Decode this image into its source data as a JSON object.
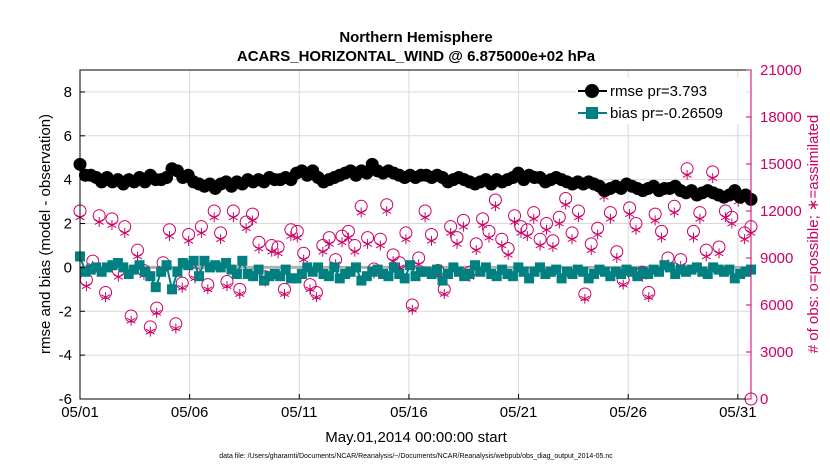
{
  "chart_data": {
    "type": "line",
    "title": "Northern Hemisphere",
    "subtitle": "ACARS_HORIZONTAL_WIND @ 6.875000e+02 hPa",
    "xlabel": "May.01,2014 00:00:00 start",
    "ylabel_left": "rmse and bias (model - observation)",
    "ylabel_right": "# of obs: o=possible; ∗=assimilated",
    "footnote": "data file: /Users/gharamti/Documents/NCAR/Reanalysis/~/Documents/NCAR/Reanalysis/webpub/obs_diag_output_2014-05.nc",
    "x_tick_labels": [
      "05/01",
      "05/06",
      "05/11",
      "05/16",
      "05/21",
      "05/26",
      "05/31"
    ],
    "x_tick_days": [
      1,
      6,
      11,
      16,
      21,
      26,
      31
    ],
    "xlim_days": [
      1,
      31.6
    ],
    "ylim_left": [
      -6,
      9
    ],
    "y_ticks_left": [
      "-6",
      "-4",
      "-2",
      "0",
      "2",
      "4",
      "6",
      "8"
    ],
    "ylim_right": [
      0,
      21000
    ],
    "y_ticks_right": [
      "0",
      "3000",
      "6000",
      "9000",
      "12000",
      "15000",
      "18000",
      "21000"
    ],
    "grid": true,
    "legend_position": "top-right",
    "colors": {
      "rmse": "#000000",
      "bias": "#008080",
      "obs": "#cc0066",
      "zero_line": "#b0b0b0"
    },
    "series": [
      {
        "name": "rmse pr=3.793",
        "values": [
          4.7,
          4.2,
          4.2,
          4.1,
          3.9,
          4.1,
          3.9,
          4.0,
          3.8,
          4.0,
          3.9,
          4.1,
          3.9,
          4.2,
          4.0,
          4.0,
          4.1,
          4.5,
          4.4,
          4.1,
          4.2,
          3.9,
          3.8,
          3.7,
          3.8,
          3.6,
          3.8,
          3.9,
          3.7,
          3.9,
          3.8,
          4.0,
          3.9,
          4.0,
          3.9,
          4.1,
          4.0,
          4.0,
          4.1,
          4.0,
          4.3,
          4.4,
          4.2,
          4.4,
          4.1,
          3.9,
          4.0,
          4.1,
          4.2,
          4.3,
          4.4,
          4.2,
          4.4,
          4.3,
          4.7,
          4.4,
          4.3,
          4.4,
          4.3,
          4.2,
          4.1,
          4.2,
          4.1,
          4.2,
          4.2,
          4.1,
          4.2,
          4.1,
          3.9,
          4.0,
          4.1,
          4.0,
          3.9,
          3.8,
          3.9,
          4.0,
          3.8,
          4.0,
          3.9,
          4.0,
          4.1,
          4.3,
          4.0,
          4.2,
          4.1,
          4.1,
          3.9,
          4.0,
          4.1,
          4.0,
          3.9,
          3.8,
          3.9,
          3.8,
          3.9,
          3.8,
          3.7,
          3.5,
          3.6,
          3.7,
          3.6,
          3.8,
          3.7,
          3.6,
          3.5,
          3.6,
          3.7,
          3.5,
          3.6,
          3.6,
          3.7,
          3.5,
          3.4,
          3.5,
          3.3,
          3.4,
          3.5,
          3.4,
          3.3,
          3.2,
          3.3,
          3.5,
          3.2,
          3.3,
          3.1
        ]
      },
      {
        "name": "bias pr=-0.26509",
        "values": [
          0.5,
          -0.2,
          -0.1,
          0.0,
          -0.2,
          0.0,
          0.1,
          0.2,
          0.0,
          -0.3,
          -0.1,
          0.1,
          -0.2,
          -0.4,
          -0.9,
          -0.2,
          0.1,
          -1.0,
          -0.2,
          0.2,
          0.1,
          0.3,
          -0.4,
          0.3,
          0.0,
          0.1,
          0.0,
          0.2,
          -0.1,
          -0.3,
          0.3,
          -0.3,
          -0.4,
          -0.1,
          -0.6,
          -0.4,
          -0.3,
          -0.4,
          -0.1,
          -0.5,
          -0.5,
          -0.3,
          0.0,
          -0.2,
          0.0,
          -0.3,
          -0.4,
          0.0,
          -0.5,
          -0.3,
          -0.2,
          0.0,
          -0.6,
          -0.4,
          -0.2,
          -0.1,
          -0.3,
          -0.4,
          0.0,
          -0.3,
          -0.5,
          0.1,
          -0.4,
          -0.2,
          -0.2,
          -0.3,
          -0.1,
          -0.6,
          -0.3,
          0.0,
          -0.2,
          -0.4,
          -0.3,
          0.1,
          -0.2,
          0.0,
          -0.3,
          -0.4,
          -0.1,
          -0.3,
          -0.4,
          0.0,
          -0.2,
          -0.5,
          -0.2,
          0.0,
          -0.3,
          -0.2,
          -0.1,
          -0.5,
          -0.2,
          -0.3,
          -0.1,
          -0.2,
          -0.5,
          -0.3,
          -0.1,
          -0.2,
          -0.4,
          -0.2,
          -0.3,
          -0.1,
          -0.2,
          -0.4,
          -0.2,
          -0.3,
          -0.1,
          -0.2,
          0.1,
          0.0,
          -0.3,
          -0.1,
          -0.2,
          -0.1,
          0.0,
          -0.2,
          -0.3,
          0.0,
          -0.1,
          -0.2,
          -0.1,
          -0.5,
          -0.3,
          -0.2,
          -0.1
        ]
      },
      {
        "name": "possible",
        "values": [
          12000,
          7600,
          8800,
          11700,
          6800,
          11500,
          8200,
          11000,
          5300,
          9500,
          8200,
          4600,
          5800,
          8700,
          10800,
          4800,
          7400,
          10500,
          8000,
          11000,
          7300,
          12000,
          10600,
          7500,
          12000,
          7000,
          11300,
          11800,
          10000,
          7800,
          9800,
          9700,
          7000,
          10800,
          10700,
          9300,
          7300,
          6800,
          9800,
          10300,
          8900,
          10400,
          10700,
          9800,
          12300,
          10300,
          8300,
          10200,
          12400,
          9200,
          8700,
          10600,
          6000,
          9000,
          12000,
          10500,
          8200,
          7000,
          11000,
          10300,
          11400,
          8100,
          9900,
          11500,
          10700,
          12700,
          10200,
          9600,
          11700,
          11000,
          10800,
          11900,
          10200,
          11200,
          10100,
          11600,
          12800,
          10600,
          12000,
          6700,
          9900,
          10900,
          13300,
          11900,
          9400,
          7600,
          12200,
          11200,
          8100,
          6800,
          11800,
          10700,
          9000,
          12300,
          8900,
          14700,
          10700,
          11900,
          9500,
          14500,
          9700,
          12000,
          11600,
          13000,
          10600,
          11000
        ]
      },
      {
        "name": "assimilated",
        "values": [
          11600,
          7200,
          8500,
          11300,
          6500,
          11100,
          7800,
          10600,
          5000,
          9100,
          7900,
          4300,
          5500,
          8300,
          10400,
          4500,
          7100,
          10100,
          7700,
          10600,
          7000,
          11600,
          10200,
          7200,
          11600,
          6700,
          10900,
          11400,
          9600,
          7500,
          9400,
          9300,
          6700,
          10400,
          10300,
          8900,
          7000,
          6500,
          9400,
          9900,
          8600,
          10000,
          10300,
          9400,
          11900,
          9900,
          8000,
          9800,
          12000,
          8800,
          8400,
          10200,
          5700,
          8600,
          11600,
          10100,
          7900,
          6700,
          10600,
          9900,
          11000,
          7800,
          9500,
          11100,
          10300,
          12300,
          9800,
          9200,
          11300,
          10600,
          10400,
          11500,
          9800,
          10800,
          9700,
          11200,
          12400,
          10200,
          11600,
          6400,
          9500,
          10500,
          12900,
          11500,
          9000,
          7300,
          11800,
          10800,
          7800,
          6500,
          11400,
          10300,
          8600,
          11900,
          8500,
          14300,
          10300,
          11500,
          9100,
          14100,
          9300,
          11600,
          11200,
          12600,
          10200,
          10600
        ]
      }
    ]
  }
}
